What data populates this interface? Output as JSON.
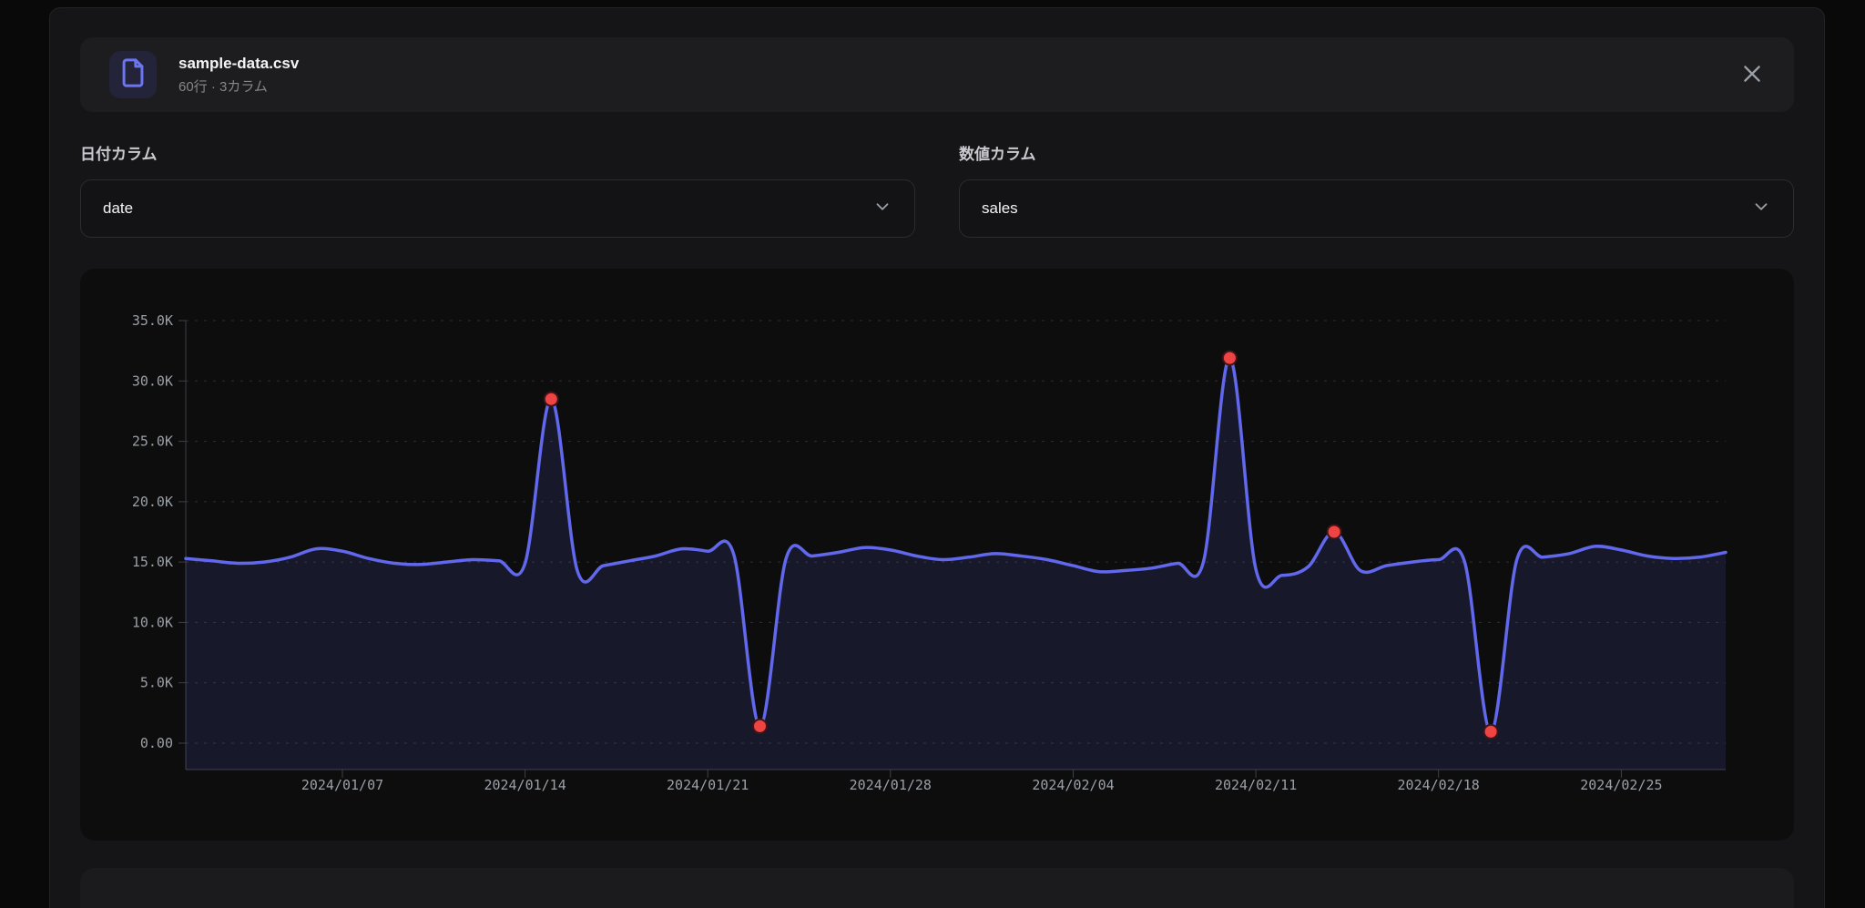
{
  "file_card": {
    "filename": "sample-data.csv",
    "meta": "60行 · 3カラム"
  },
  "selectors": {
    "date_column": {
      "label": "日付カラム",
      "value": "date"
    },
    "value_column": {
      "label": "数値カラム",
      "value": "sales"
    }
  },
  "colors": {
    "line": "#6168ec",
    "area_fill": "rgba(99,102,241,0.13)",
    "anomaly_dot": "#ef4444",
    "anomaly_dot_border": "#431417",
    "axis": "#3f3f46",
    "grid": "#2e2e34",
    "tick_label": "#9aa0a6",
    "file_icon": "#6d76f2"
  },
  "chart_data": {
    "type": "line",
    "legend": "none",
    "grid": "dotted-horizontal",
    "ylim": [
      0,
      35000
    ],
    "y_ticks": [
      {
        "v": 0,
        "label": "0.00"
      },
      {
        "v": 5000,
        "label": "5.0K"
      },
      {
        "v": 10000,
        "label": "10.0K"
      },
      {
        "v": 15000,
        "label": "15.0K"
      },
      {
        "v": 20000,
        "label": "20.0K"
      },
      {
        "v": 25000,
        "label": "25.0K"
      },
      {
        "v": 30000,
        "label": "30.0K"
      },
      {
        "v": 35000,
        "label": "35.0K"
      }
    ],
    "x_tick_indices": [
      6,
      13,
      20,
      27,
      34,
      41,
      48,
      55
    ],
    "x": [
      "2024/01/01",
      "2024/01/02",
      "2024/01/03",
      "2024/01/04",
      "2024/01/05",
      "2024/01/06",
      "2024/01/07",
      "2024/01/08",
      "2024/01/09",
      "2024/01/10",
      "2024/01/11",
      "2024/01/12",
      "2024/01/13",
      "2024/01/14",
      "2024/01/15",
      "2024/01/16",
      "2024/01/17",
      "2024/01/18",
      "2024/01/19",
      "2024/01/20",
      "2024/01/21",
      "2024/01/22",
      "2024/01/23",
      "2024/01/24",
      "2024/01/25",
      "2024/01/26",
      "2024/01/27",
      "2024/01/28",
      "2024/01/29",
      "2024/01/30",
      "2024/01/31",
      "2024/02/01",
      "2024/02/02",
      "2024/02/03",
      "2024/02/04",
      "2024/02/05",
      "2024/02/06",
      "2024/02/07",
      "2024/02/08",
      "2024/02/09",
      "2024/02/10",
      "2024/02/11",
      "2024/02/12",
      "2024/02/13",
      "2024/02/14",
      "2024/02/15",
      "2024/02/16",
      "2024/02/17",
      "2024/02/18",
      "2024/02/19",
      "2024/02/20",
      "2024/02/21",
      "2024/02/22",
      "2024/02/23",
      "2024/02/24",
      "2024/02/25",
      "2024/02/26",
      "2024/02/27",
      "2024/02/28",
      "2024/02/29"
    ],
    "series": [
      {
        "name": "sales",
        "values": [
          15300,
          15100,
          14900,
          15000,
          15400,
          16100,
          15900,
          15300,
          14900,
          14800,
          15000,
          15200,
          15100,
          14900,
          28500,
          14300,
          14700,
          15100,
          15500,
          16100,
          15900,
          15600,
          1400,
          15300,
          15500,
          15800,
          16200,
          16000,
          15500,
          15200,
          15400,
          15700,
          15500,
          15200,
          14700,
          14200,
          14300,
          14500,
          14900,
          15100,
          31900,
          14400,
          13900,
          14600,
          17500,
          14300,
          14700,
          15000,
          15200,
          15000,
          950,
          15200,
          15400,
          15700,
          16300,
          16000,
          15500,
          15300,
          15400,
          15800
        ]
      }
    ],
    "anomaly_indices": [
      14,
      22,
      40,
      44,
      50
    ]
  }
}
